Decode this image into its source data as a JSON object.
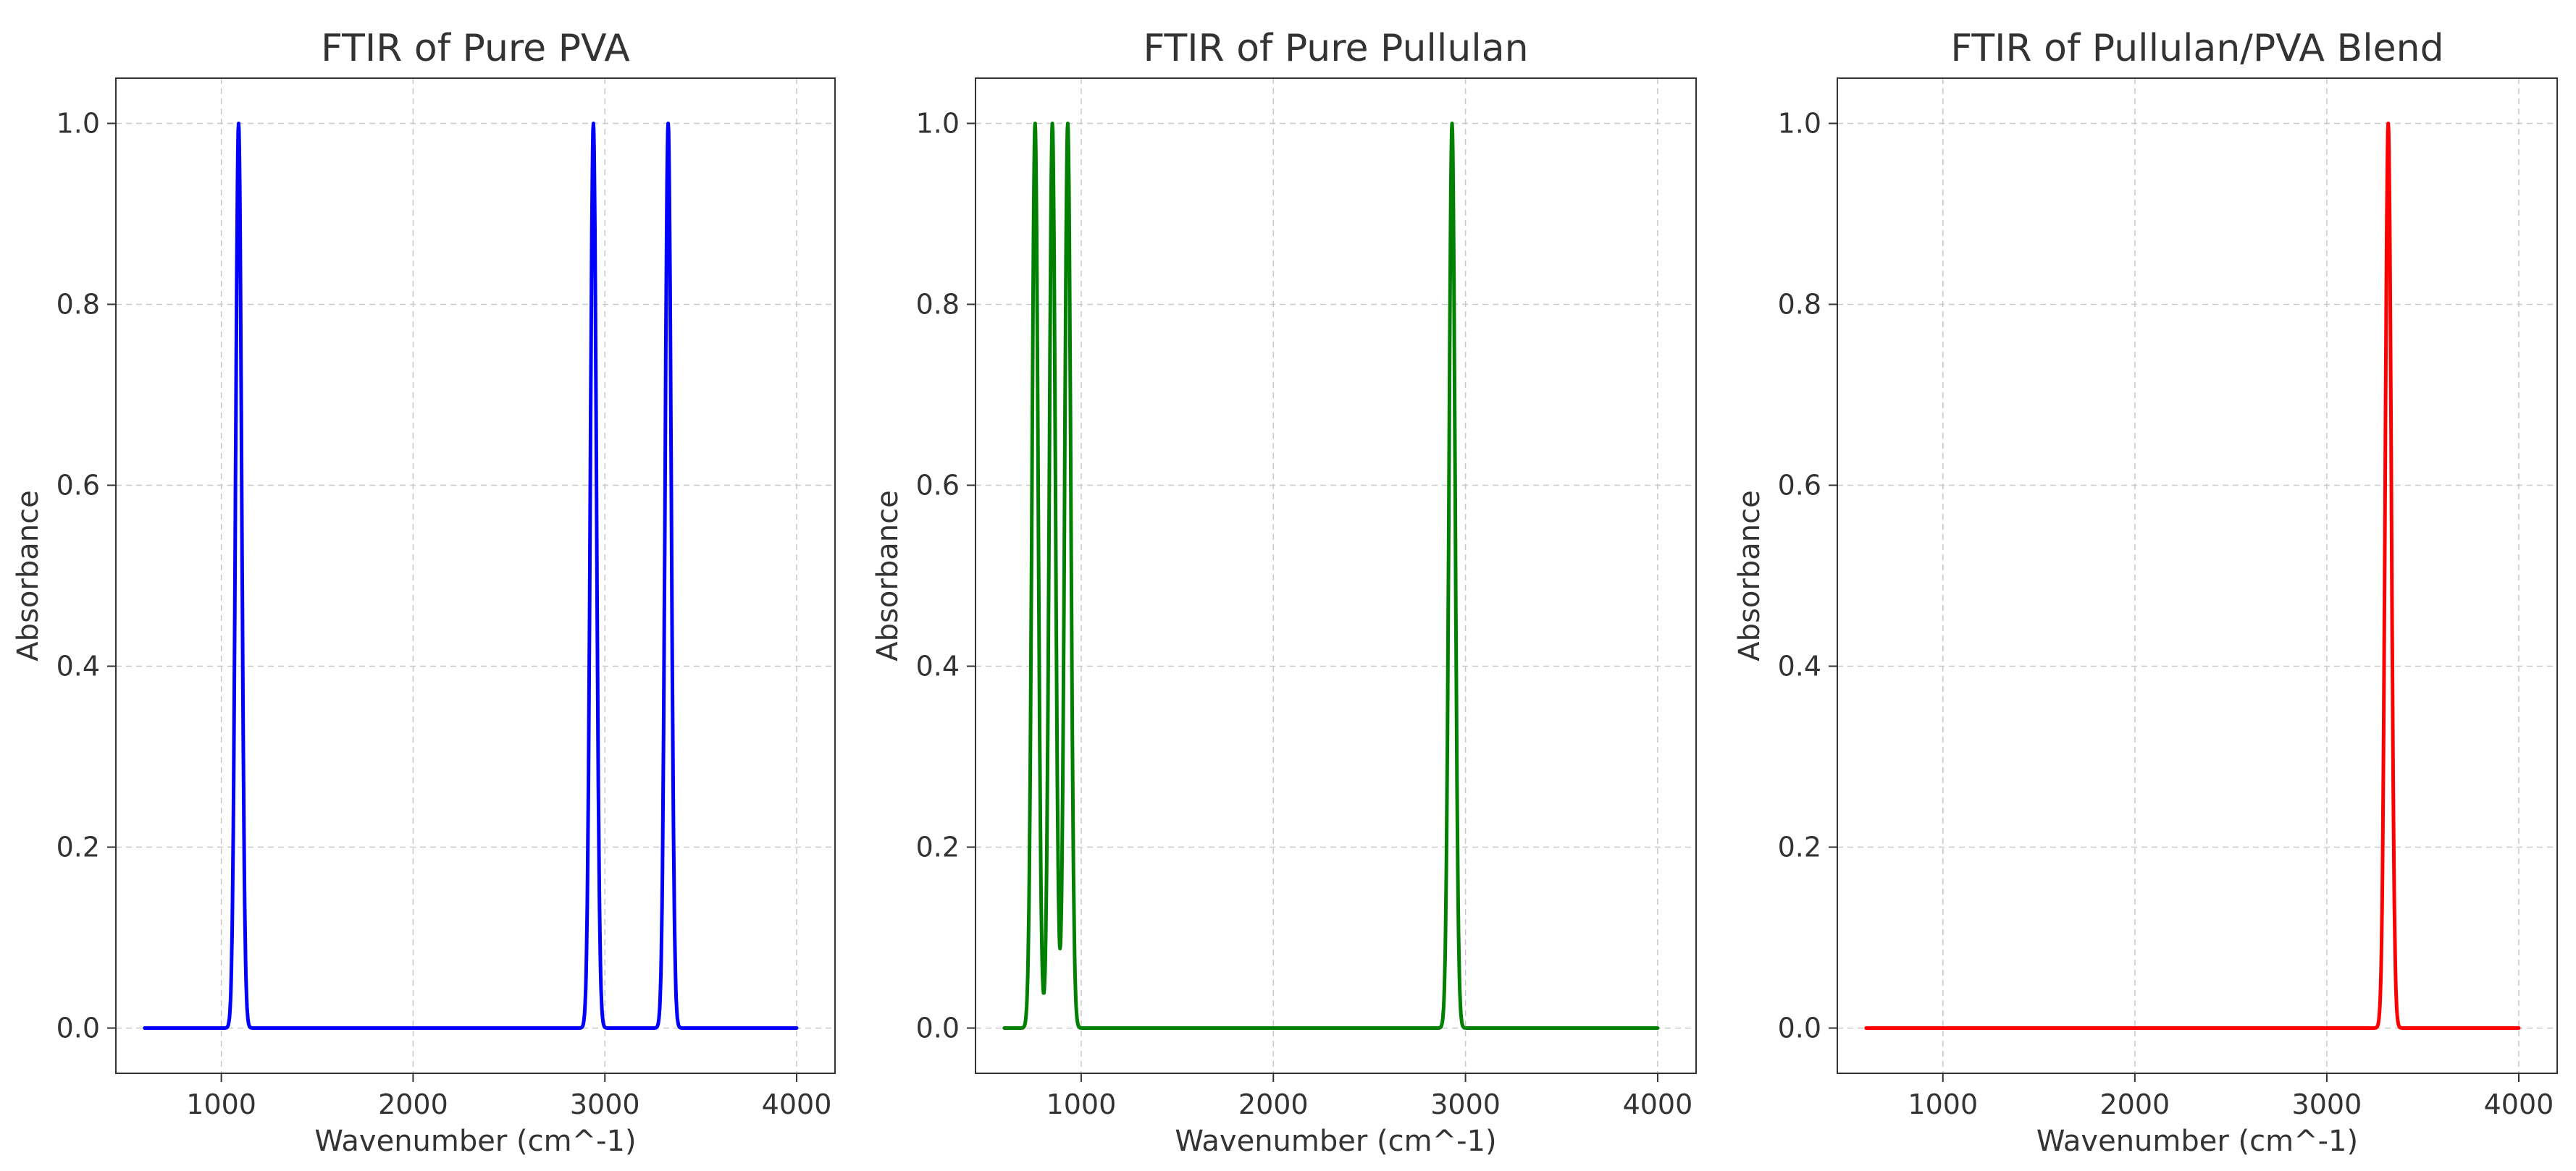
{
  "chart_data": [
    {
      "type": "line",
      "title": "FTIR of Pure PVA",
      "xlabel": "Wavenumber (cm^-1)",
      "ylabel": "Absorbance",
      "xlim": [
        450,
        4200
      ],
      "ylim": [
        -0.05,
        1.05
      ],
      "xticks": [
        1000,
        2000,
        3000,
        4000
      ],
      "yticks": [
        0.0,
        0.2,
        0.4,
        0.6,
        0.8,
        1.0
      ],
      "grid": true,
      "color": "#0000ff",
      "x_range": [
        600,
        4000
      ],
      "peaks": [
        {
          "center": 1090,
          "height": 1.0,
          "width": 16
        },
        {
          "center": 2940,
          "height": 1.0,
          "width": 16
        },
        {
          "center": 3330,
          "height": 1.0,
          "width": 16
        }
      ]
    },
    {
      "type": "line",
      "title": "FTIR of Pure Pullulan",
      "xlabel": "Wavenumber (cm^-1)",
      "ylabel": "Absorbance",
      "xlim": [
        450,
        4200
      ],
      "ylim": [
        -0.05,
        1.05
      ],
      "xticks": [
        1000,
        2000,
        3000,
        4000
      ],
      "yticks": [
        0.0,
        0.2,
        0.4,
        0.6,
        0.8,
        1.0
      ],
      "grid": true,
      "color": "#008000",
      "x_range": [
        600,
        4000
      ],
      "peaks": [
        {
          "center": 760,
          "height": 1.0,
          "width": 16
        },
        {
          "center": 850,
          "height": 1.0,
          "width": 16
        },
        {
          "center": 930,
          "height": 1.0,
          "width": 16
        },
        {
          "center": 2930,
          "height": 1.0,
          "width": 16
        }
      ]
    },
    {
      "type": "line",
      "title": "FTIR of Pullulan/PVA Blend",
      "xlabel": "Wavenumber (cm^-1)",
      "ylabel": "Absorbance",
      "xlim": [
        450,
        4200
      ],
      "ylim": [
        -0.05,
        1.05
      ],
      "xticks": [
        1000,
        2000,
        3000,
        4000
      ],
      "yticks": [
        0.0,
        0.2,
        0.4,
        0.6,
        0.8,
        1.0
      ],
      "grid": true,
      "color": "#ff0000",
      "x_range": [
        600,
        4000
      ],
      "peaks": [
        {
          "center": 3320,
          "height": 1.0,
          "width": 16
        }
      ]
    }
  ]
}
